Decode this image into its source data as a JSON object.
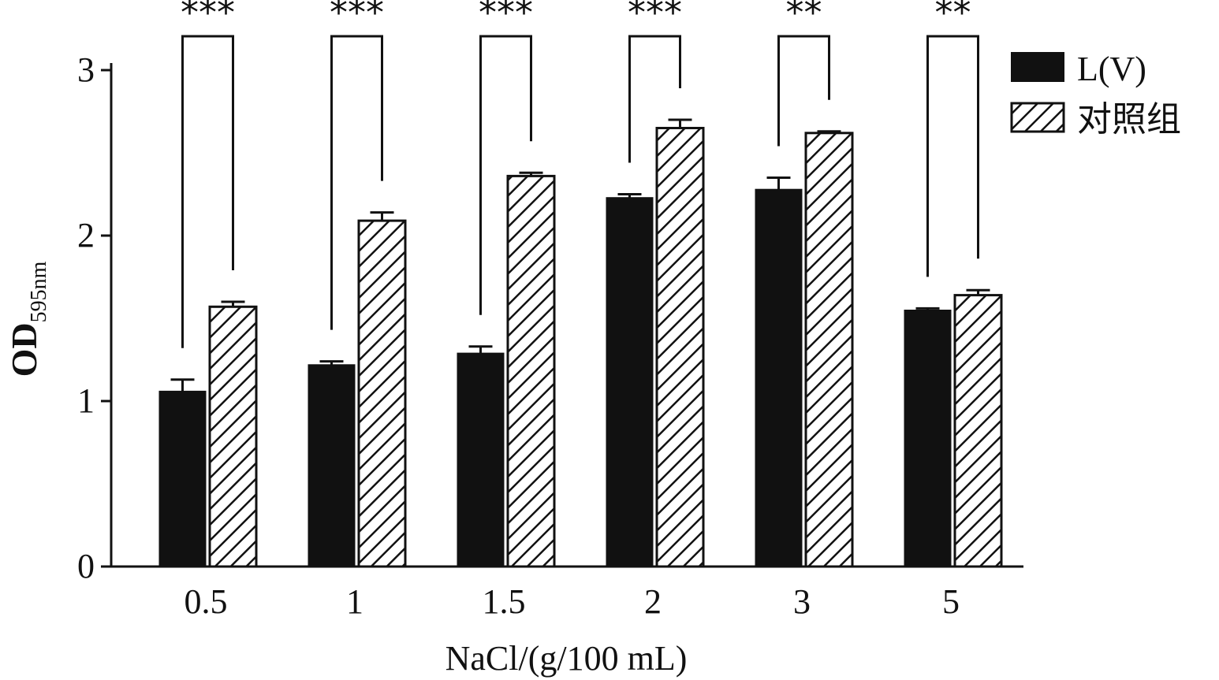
{
  "chart_data": {
    "type": "bar",
    "categories": [
      "0.5",
      "1",
      "1.5",
      "2",
      "3",
      "5"
    ],
    "series": [
      {
        "name": "L(V)",
        "values": [
          1.06,
          1.22,
          1.29,
          2.23,
          2.28,
          1.55
        ],
        "errors": [
          0.07,
          0.02,
          0.04,
          0.02,
          0.07,
          0.01
        ],
        "pattern": "solid"
      },
      {
        "name": "对照组",
        "values": [
          1.57,
          2.09,
          2.36,
          2.65,
          2.62,
          1.64
        ],
        "errors": [
          0.03,
          0.05,
          0.02,
          0.05,
          0.01,
          0.03
        ],
        "pattern": "hatched"
      }
    ],
    "significance": [
      "***",
      "***",
      "***",
      "***",
      "**",
      "**"
    ],
    "xlabel": "NaCl/(g/100 mL)",
    "ylabel": {
      "main": "OD",
      "subscript": "595nm"
    },
    "ylim": [
      0,
      3
    ],
    "yticks": [
      "0",
      "1",
      "2",
      "3"
    ],
    "legend": "top-right",
    "grid": false,
    "colors": {
      "ink": "#111111",
      "background": "#ffffff"
    }
  }
}
